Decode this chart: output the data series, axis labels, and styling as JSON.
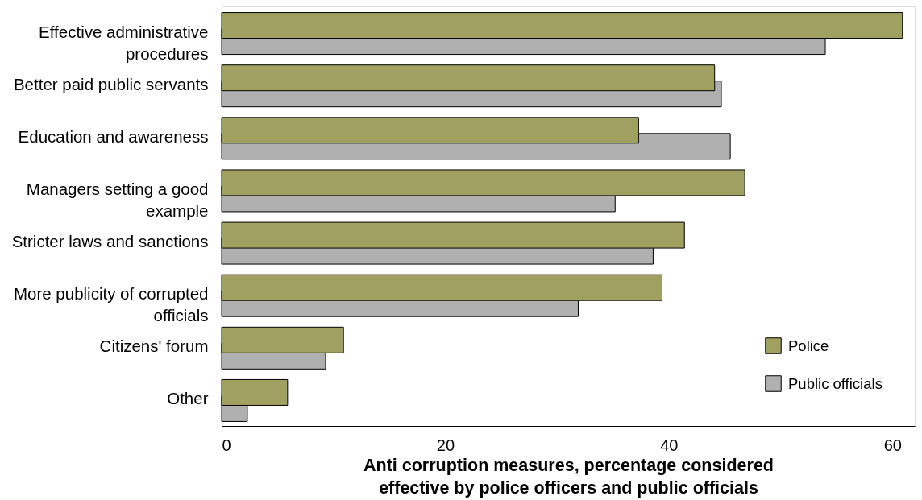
{
  "chart_data": {
    "type": "bar",
    "orientation": "horizontal",
    "xlabel": "Anti corruption measures, percentage considered effective by police officers and public officials",
    "categories": [
      "Effective administrative procedures",
      "Better paid public servants",
      "Education and awareness",
      "Managers setting a good example",
      "Stricter laws and sanctions",
      "More publicity of corrupted officials",
      "Citizens' forum",
      "Other"
    ],
    "series": [
      {
        "name": "Police",
        "color": "#a0a060",
        "values": [
          60.9,
          44.1,
          37.3,
          46.8,
          41.4,
          39.4,
          10.9,
          5.9
        ]
      },
      {
        "name": "Public officials",
        "color": "#b0b0b0",
        "values": [
          54.0,
          44.7,
          45.5,
          35.2,
          38.6,
          31.9,
          9.3,
          2.3
        ]
      }
    ],
    "xlim": [
      0,
      62
    ],
    "xticks": [
      0,
      20,
      40,
      60
    ],
    "legend": "bottom right"
  }
}
